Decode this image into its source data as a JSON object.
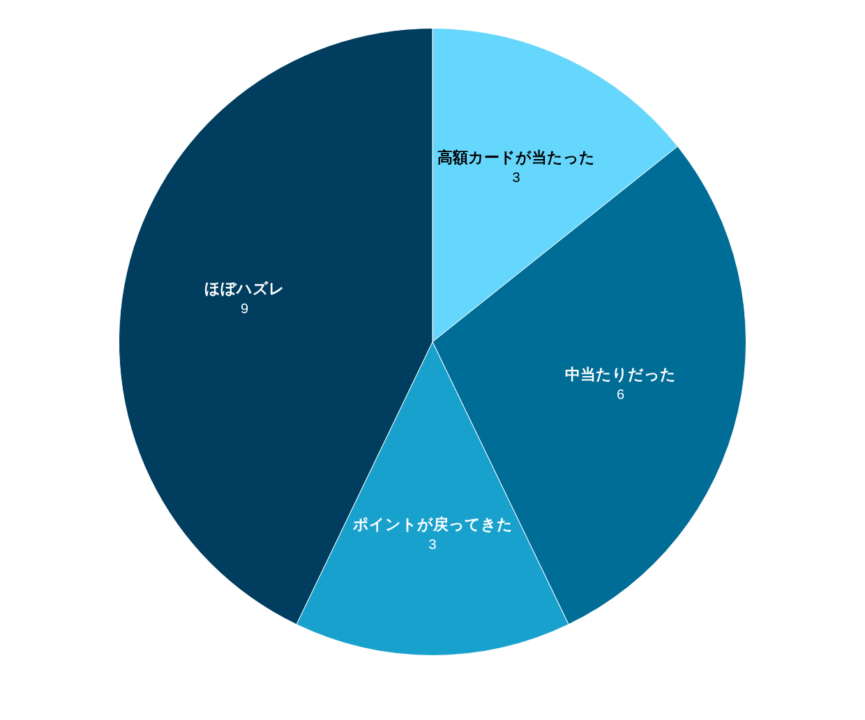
{
  "chart_data": {
    "type": "pie",
    "categories": [
      "高額カードが当たった",
      "中当たりだった",
      "ポイントが戻ってきた",
      "ほぼハズレ"
    ],
    "values": [
      3,
      6,
      3,
      9
    ],
    "colors": [
      "#66d7fc",
      "#006d96",
      "#19a1cd",
      "#003d5f"
    ],
    "data_labels": true,
    "legend": false
  }
}
